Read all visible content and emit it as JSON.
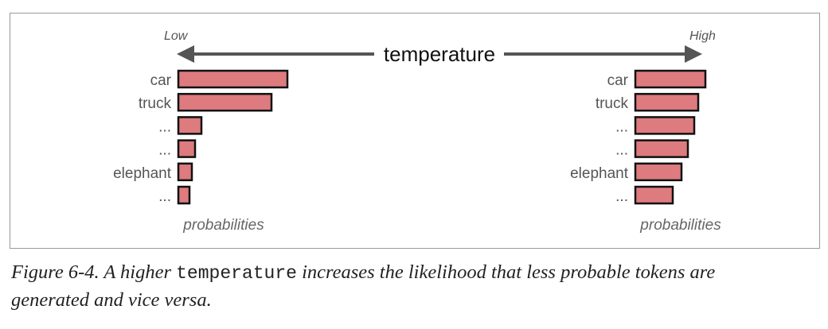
{
  "header": {
    "low_label": "Low",
    "high_label": "High",
    "center_label": "temperature"
  },
  "panels": [
    {
      "name": "low",
      "tokens": [
        "car",
        "truck",
        "...",
        "...",
        "elephant",
        "..."
      ],
      "values": [
        137,
        117,
        29,
        21,
        17,
        14
      ],
      "axis_label": "probabilities"
    },
    {
      "name": "high",
      "tokens": [
        "car",
        "truck",
        "...",
        "...",
        "elephant",
        "..."
      ],
      "values": [
        88,
        79,
        74,
        66,
        58,
        47
      ],
      "axis_label": "probabilities"
    }
  ],
  "colors": {
    "bar_fill": "#dd7b7f",
    "bar_stroke": "#111111",
    "arrow": "#555555"
  },
  "caption": {
    "prefix": "Figure 6-4. A higher ",
    "code": "temperature",
    "suffix_line1": " increases the likelihood that less probable tokens are",
    "line2": "generated and vice versa."
  }
}
